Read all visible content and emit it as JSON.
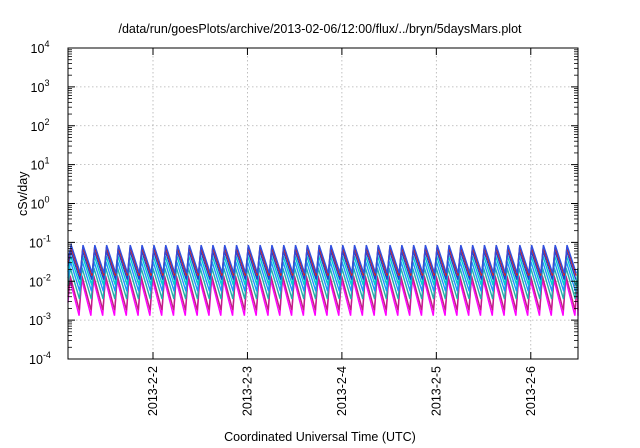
{
  "chart_data": {
    "type": "line",
    "title": "/data/run/goesPlots/archive/2013-02-06/12:00/flux/../bryn/5daysMars.plot",
    "xlabel": "Coordinated Universal Time (UTC)",
    "ylabel": "cSv/day",
    "y_scale": "log",
    "ylim_exp": [
      -4,
      4
    ],
    "y_ticks": [
      {
        "mantissa": "10",
        "exp": "-4"
      },
      {
        "mantissa": "10",
        "exp": "-3"
      },
      {
        "mantissa": "10",
        "exp": "-2"
      },
      {
        "mantissa": "10",
        "exp": "-1"
      },
      {
        "mantissa": "10",
        "exp": "0"
      },
      {
        "mantissa": "10",
        "exp": "1"
      },
      {
        "mantissa": "10",
        "exp": "2"
      },
      {
        "mantissa": "10",
        "exp": "3"
      },
      {
        "mantissa": "10",
        "exp": "4"
      }
    ],
    "x_range_days": [
      1.1,
      6.5
    ],
    "x_ticks": [
      {
        "label": "2013-2-2",
        "day": 2
      },
      {
        "label": "2013-2-3",
        "day": 3
      },
      {
        "label": "2013-2-4",
        "day": 4
      },
      {
        "label": "2013-2-5",
        "day": 5
      },
      {
        "label": "2013-2-6",
        "day": 6
      }
    ],
    "grid": true,
    "cycle_period_days": 0.125,
    "series": [
      {
        "color": "#ff00ff",
        "peak": 0.011,
        "trough": 0.0013
      },
      {
        "color": "#c02080",
        "peak": 0.014,
        "trough": 0.0018
      },
      {
        "color": "#20b2aa",
        "peak": 0.022,
        "trough": 0.0035
      },
      {
        "color": "#1e90ff",
        "peak": 0.032,
        "trough": 0.0055
      },
      {
        "color": "#00ced1",
        "peak": 0.045,
        "trough": 0.008
      },
      {
        "color": "#2040d0",
        "peak": 0.06,
        "trough": 0.011
      },
      {
        "color": "#d02020",
        "peak": 0.075,
        "trough": 0.014
      },
      {
        "color": "#3050e0",
        "peak": 0.085,
        "trough": 0.016
      }
    ]
  }
}
